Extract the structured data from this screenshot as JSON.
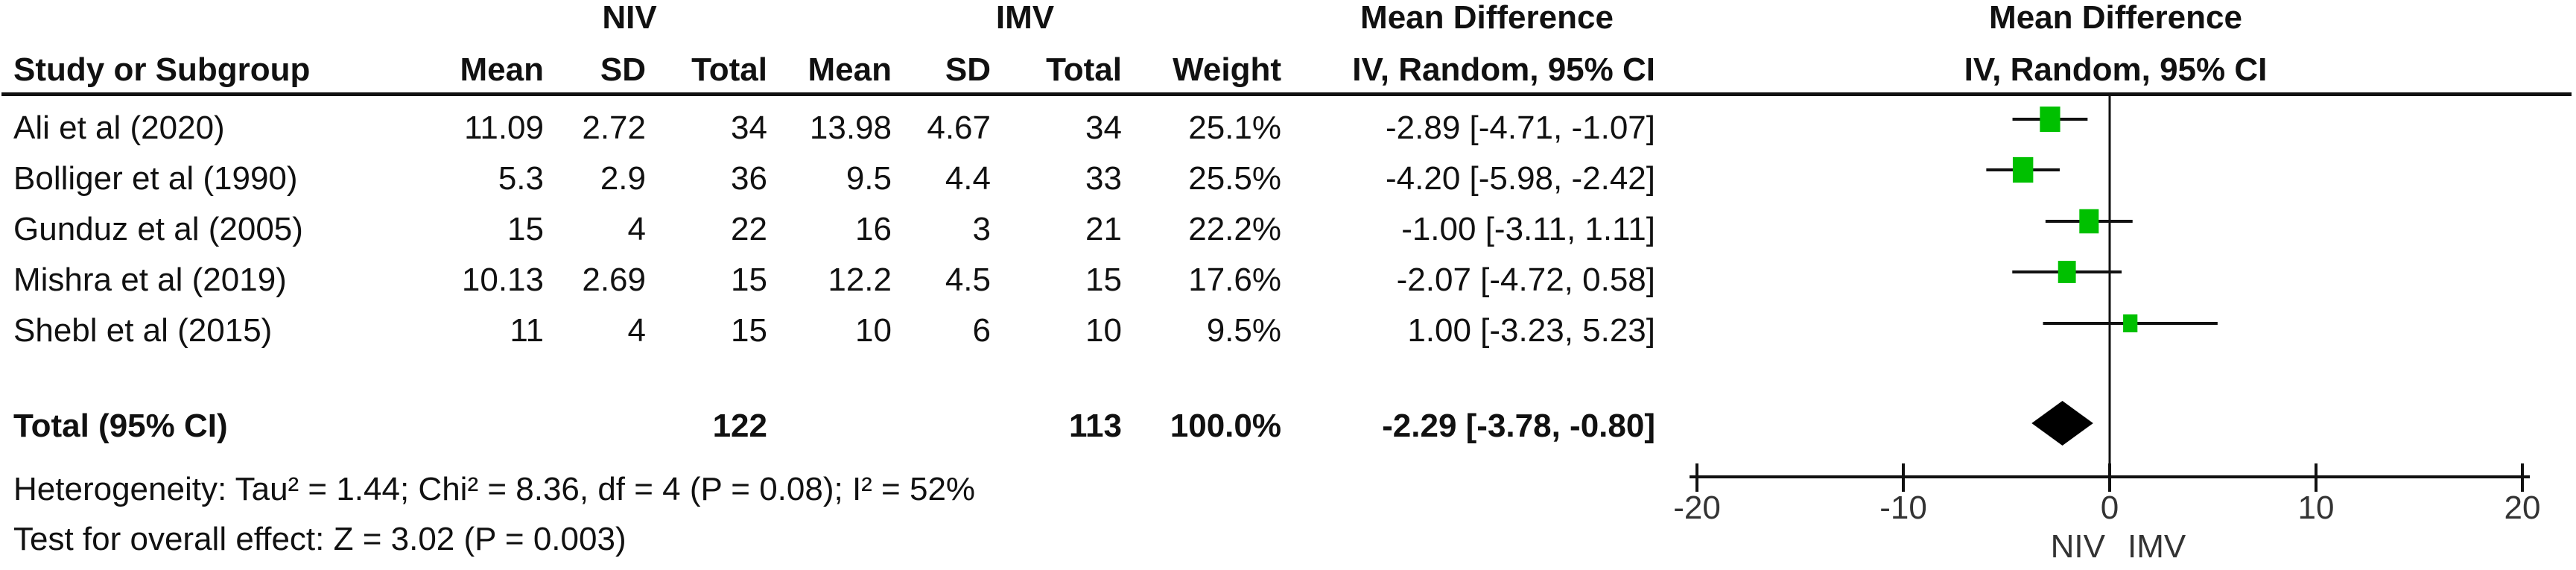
{
  "chart_data": {
    "type": "forest",
    "group_headers": {
      "experimental": "NIV",
      "control": "IMV",
      "effect": "Mean Difference",
      "plot": "Mean Difference"
    },
    "columns": {
      "study": "Study or Subgroup",
      "mean": "Mean",
      "sd": "SD",
      "total": "Total",
      "weight": "Weight",
      "effect_ci": "IV, Random, 95% CI",
      "plot_subheader": "IV, Random, 95% CI"
    },
    "studies": [
      {
        "name": "Ali et al (2020)",
        "niv_mean": "11.09",
        "niv_sd": "2.72",
        "niv_total": "34",
        "imv_mean": "13.98",
        "imv_sd": "4.67",
        "imv_total": "34",
        "weight": "25.1%",
        "ci_text": "-2.89 [-4.71, -1.07]",
        "md": -2.89,
        "lo": -4.71,
        "hi": -1.07,
        "w": 25.1
      },
      {
        "name": "Bolliger et al (1990)",
        "niv_mean": "5.3",
        "niv_sd": "2.9",
        "niv_total": "36",
        "imv_mean": "9.5",
        "imv_sd": "4.4",
        "imv_total": "33",
        "weight": "25.5%",
        "ci_text": "-4.20 [-5.98, -2.42]",
        "md": -4.2,
        "lo": -5.98,
        "hi": -2.42,
        "w": 25.5
      },
      {
        "name": "Gunduz et al (2005)",
        "niv_mean": "15",
        "niv_sd": "4",
        "niv_total": "22",
        "imv_mean": "16",
        "imv_sd": "3",
        "imv_total": "21",
        "weight": "22.2%",
        "ci_text": "-1.00 [-3.11, 1.11]",
        "md": -1.0,
        "lo": -3.11,
        "hi": 1.11,
        "w": 22.2
      },
      {
        "name": "Mishra et al (2019)",
        "niv_mean": "10.13",
        "niv_sd": "2.69",
        "niv_total": "15",
        "imv_mean": "12.2",
        "imv_sd": "4.5",
        "imv_total": "15",
        "weight": "17.6%",
        "ci_text": "-2.07 [-4.72, 0.58]",
        "md": -2.07,
        "lo": -4.72,
        "hi": 0.58,
        "w": 17.6
      },
      {
        "name": "Shebl et al (2015)",
        "niv_mean": "11",
        "niv_sd": "4",
        "niv_total": "15",
        "imv_mean": "10",
        "imv_sd": "6",
        "imv_total": "10",
        "weight": "9.5%",
        "ci_text": "1.00 [-3.23, 5.23]",
        "md": 1.0,
        "lo": -3.23,
        "hi": 5.23,
        "w": 9.5
      }
    ],
    "total": {
      "label": "Total (95% CI)",
      "niv_total": "122",
      "imv_total": "113",
      "weight": "100.0%",
      "ci_text": "-2.29 [-3.78, -0.80]",
      "md": -2.29,
      "lo": -3.78,
      "hi": -0.8
    },
    "heterogeneity": "Heterogeneity: Tau² = 1.44; Chi² = 8.36, df = 4 (P = 0.08); I² = 52%",
    "overall_effect": "Test for overall effect: Z = 3.02 (P = 0.003)",
    "xlim": [
      -20,
      20
    ],
    "xticks": [
      -20,
      -10,
      0,
      10,
      20
    ],
    "xtick_labels": [
      "-20",
      "-10",
      "0",
      "10",
      "20"
    ],
    "favours_left": "NIV",
    "favours_right": "IMV",
    "colors": {
      "square": "#00c000",
      "diamond": "#000000",
      "lines": "#111111"
    }
  }
}
